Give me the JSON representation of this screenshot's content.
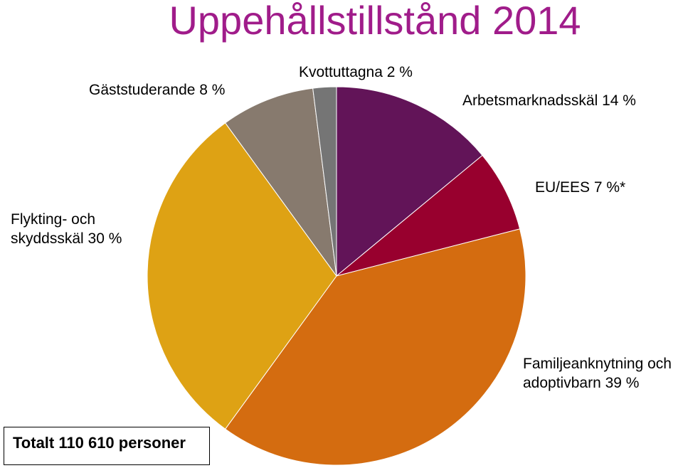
{
  "title": "Uppehållstillstånd 2014",
  "title_color": "#A01C8A",
  "total_label": "Totalt 110 610 personer",
  "chart_data": {
    "type": "pie",
    "title": "Uppehållstillstånd 2014",
    "slices": [
      {
        "label": "Arbetsmarknadsskäl 14 %",
        "value": 14,
        "color": "#621458"
      },
      {
        "label": "EU/EES 7 %*",
        "value": 7,
        "color": "#98002E"
      },
      {
        "label": "Familjeanknytning och\nadoptivbarn 39 %",
        "value": 39,
        "color": "#D46C10"
      },
      {
        "label": "Flykting- och\nskyddsskäl 30 %",
        "value": 30,
        "color": "#DEA214"
      },
      {
        "label": "Gäststuderande 8 %",
        "value": 8,
        "color": "#877A6E"
      },
      {
        "label": "Kvottuttagna 2 %",
        "value": 2,
        "color": "#757575"
      }
    ]
  }
}
